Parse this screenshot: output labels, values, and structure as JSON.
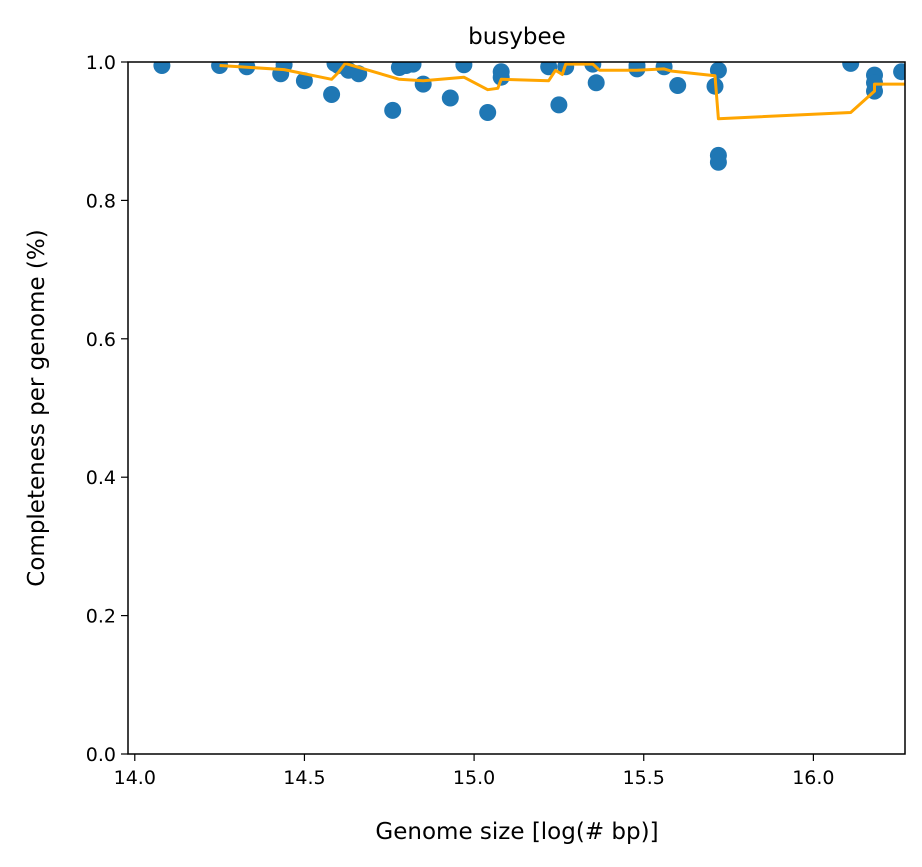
{
  "chart_data": {
    "type": "scatter",
    "title": "busybee",
    "xlabel": "Genome size [log(# bp)]",
    "ylabel": "Completeness per genome (%)",
    "xlim": [
      13.98,
      16.27
    ],
    "ylim": [
      0.0,
      1.0
    ],
    "xticks": [
      14.0,
      14.5,
      15.0,
      15.5,
      16.0
    ],
    "xtick_labels": [
      "14.0",
      "14.5",
      "15.0",
      "15.5",
      "16.0"
    ],
    "yticks": [
      0.0,
      0.2,
      0.4,
      0.6,
      0.8,
      1.0
    ],
    "ytick_labels": [
      "0.0",
      "0.2",
      "0.4",
      "0.6",
      "0.8",
      "1.0"
    ],
    "grid": false,
    "colors": {
      "points": "#1f77b4",
      "line": "#ffa500"
    },
    "series": [
      {
        "kind": "scatter",
        "points": [
          [
            14.08,
            0.995
          ],
          [
            14.25,
            0.995
          ],
          [
            14.33,
            0.993
          ],
          [
            14.43,
            0.983
          ],
          [
            14.44,
            0.996
          ],
          [
            14.5,
            0.973
          ],
          [
            14.58,
            0.953
          ],
          [
            14.59,
            0.998
          ],
          [
            14.6,
            0.995
          ],
          [
            14.63,
            0.988
          ],
          [
            14.66,
            0.983
          ],
          [
            14.76,
            0.93
          ],
          [
            14.78,
            0.992
          ],
          [
            14.8,
            0.995
          ],
          [
            14.82,
            0.997
          ],
          [
            14.85,
            0.968
          ],
          [
            14.93,
            0.948
          ],
          [
            14.97,
            0.996
          ],
          [
            15.04,
            0.927
          ],
          [
            15.08,
            0.986
          ],
          [
            15.08,
            0.978
          ],
          [
            15.22,
            0.993
          ],
          [
            15.25,
            0.938
          ],
          [
            15.27,
            0.993
          ],
          [
            15.35,
            0.997
          ],
          [
            15.36,
            0.97
          ],
          [
            15.48,
            0.995
          ],
          [
            15.48,
            0.99
          ],
          [
            15.56,
            0.993
          ],
          [
            15.6,
            0.966
          ],
          [
            15.71,
            0.965
          ],
          [
            15.72,
            0.988
          ],
          [
            15.72,
            0.865
          ],
          [
            15.72,
            0.855
          ],
          [
            16.11,
            0.998
          ],
          [
            16.18,
            0.981
          ],
          [
            16.18,
            0.97
          ],
          [
            16.18,
            0.958
          ],
          [
            16.26,
            0.986
          ]
        ]
      },
      {
        "kind": "line",
        "points": [
          [
            14.25,
            0.995
          ],
          [
            14.44,
            0.989
          ],
          [
            14.58,
            0.975
          ],
          [
            14.6,
            0.985
          ],
          [
            14.62,
            0.998
          ],
          [
            14.78,
            0.975
          ],
          [
            14.85,
            0.973
          ],
          [
            14.97,
            0.978
          ],
          [
            15.04,
            0.96
          ],
          [
            15.07,
            0.962
          ],
          [
            15.08,
            0.975
          ],
          [
            15.22,
            0.973
          ],
          [
            15.24,
            0.988
          ],
          [
            15.26,
            0.982
          ],
          [
            15.27,
            0.997
          ],
          [
            15.35,
            0.997
          ],
          [
            15.37,
            0.988
          ],
          [
            15.48,
            0.988
          ],
          [
            15.56,
            0.99
          ],
          [
            15.58,
            0.987
          ],
          [
            15.71,
            0.98
          ],
          [
            15.72,
            0.918
          ],
          [
            16.11,
            0.927
          ],
          [
            16.18,
            0.958
          ],
          [
            16.18,
            0.968
          ],
          [
            16.27,
            0.968
          ]
        ]
      }
    ]
  }
}
